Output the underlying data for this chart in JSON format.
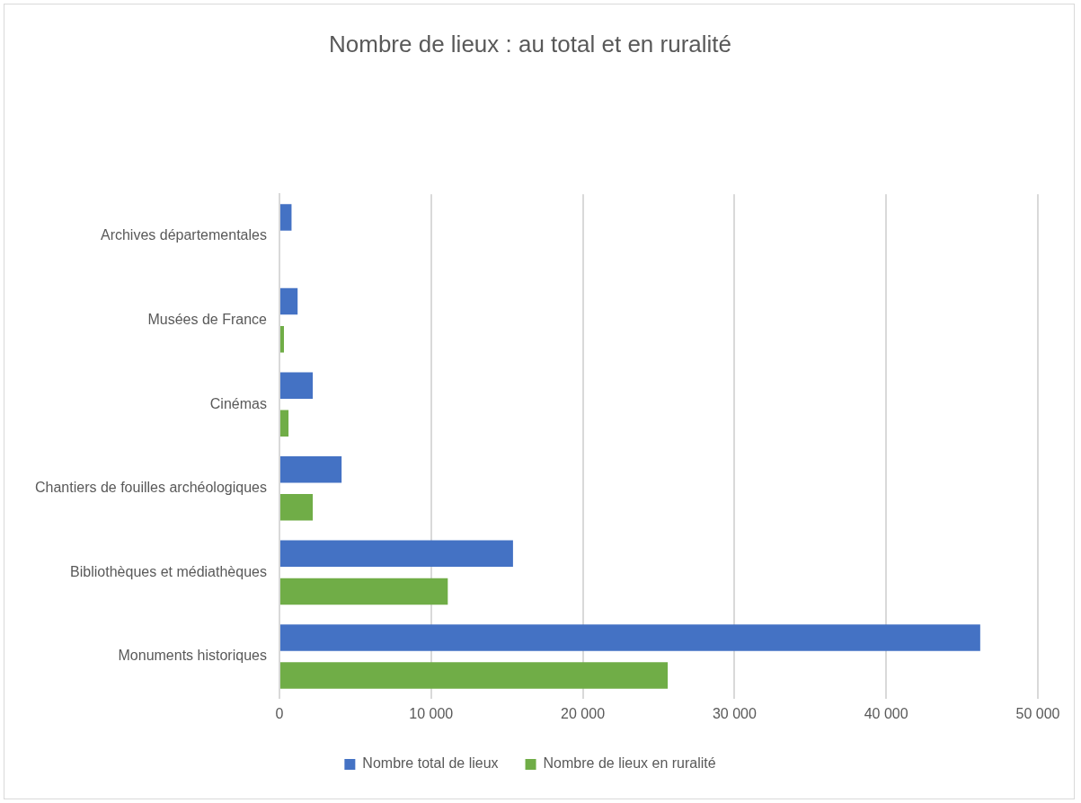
{
  "chart_data": {
    "type": "bar",
    "orientation": "horizontal",
    "title": "Nombre de lieux : au total et en ruralité",
    "categories": [
      "Archives départementales",
      "Musées de France",
      "Cinémas",
      "Chantiers de fouilles archéologiques",
      "Bibliothèques et médiathèques",
      "Monuments historiques"
    ],
    "series": [
      {
        "name": "Nombre total de lieux",
        "color": "#4472c4",
        "values": [
          800,
          1200,
          2200,
          4100,
          15400,
          46200
        ]
      },
      {
        "name": "Nombre de lieux en ruralité",
        "color": "#70ad47",
        "values": [
          0,
          300,
          600,
          2200,
          11100,
          25600
        ]
      }
    ],
    "xlim": [
      0,
      50000
    ],
    "xticks": [
      0,
      {
        "value": 10000,
        "label": "10 000"
      },
      {
        "value": 20000,
        "label": "20 000"
      },
      {
        "value": 30000,
        "label": "30 000"
      },
      {
        "value": 40000,
        "label": "40 000"
      },
      {
        "value": 50000,
        "label": "50 000"
      }
    ],
    "grid": "x",
    "legend": "bottom"
  }
}
